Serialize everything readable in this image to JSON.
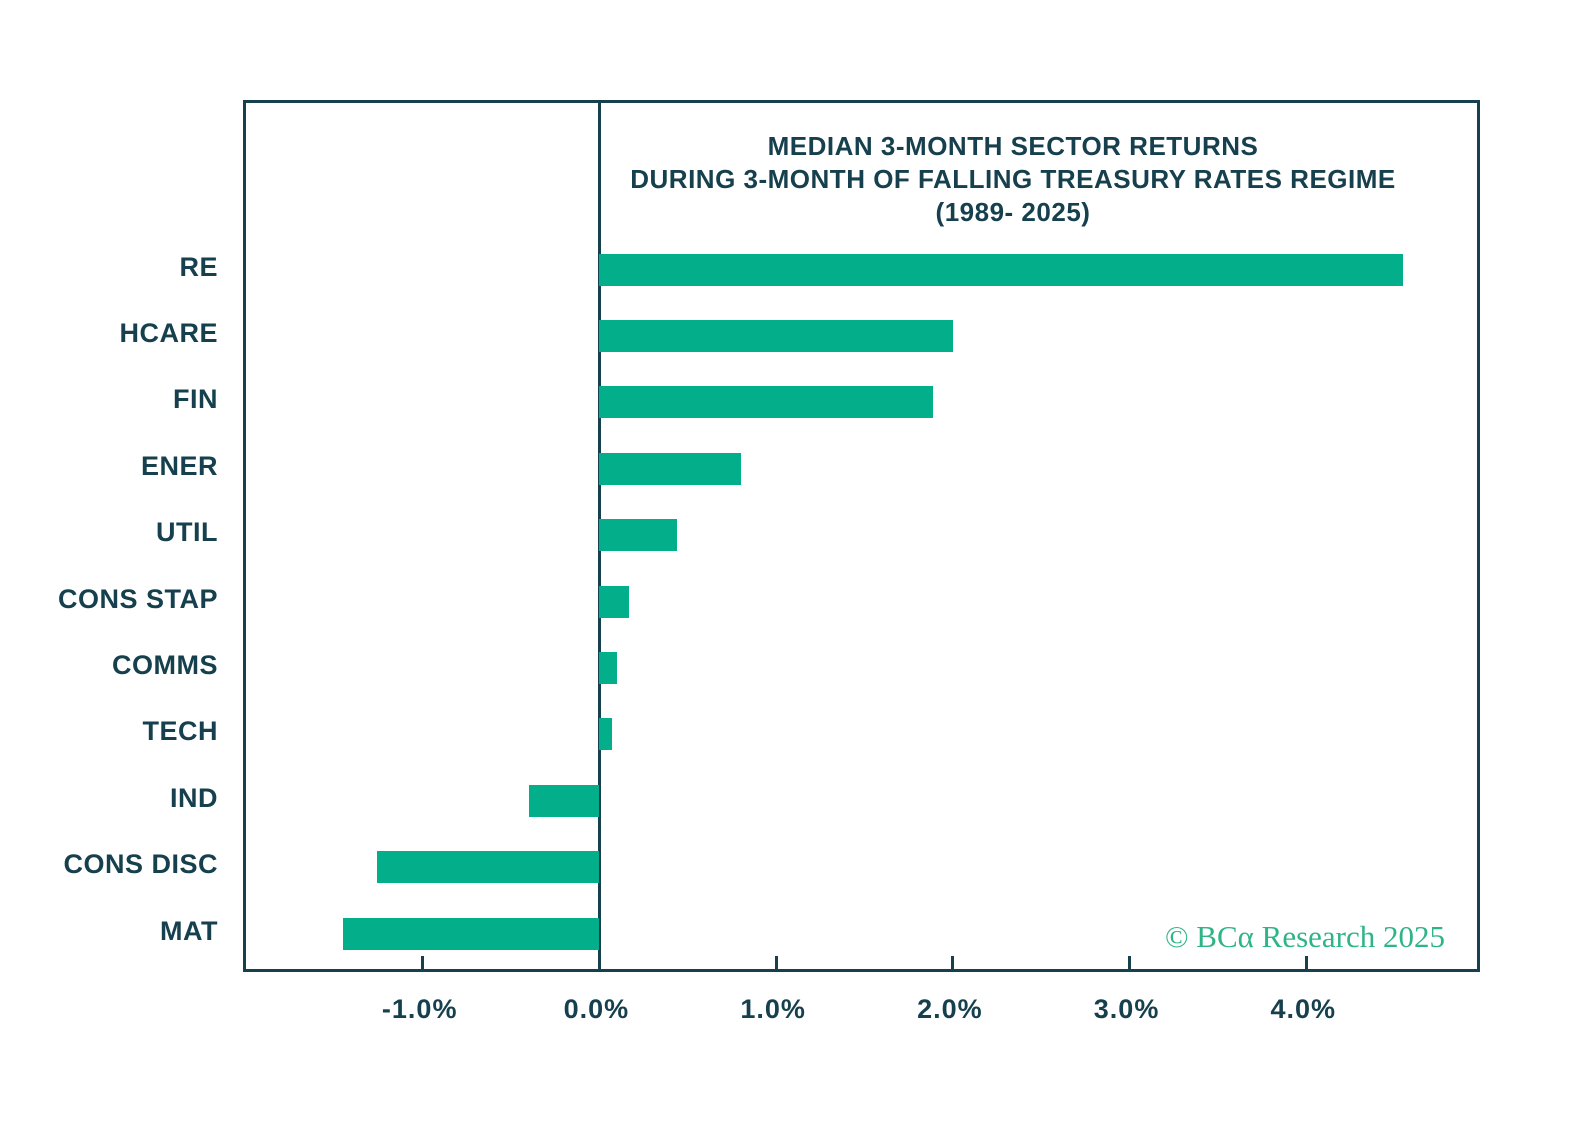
{
  "page": {
    "background": "#ffffff"
  },
  "chart_data": {
    "type": "bar",
    "orientation": "horizontal",
    "title_lines": [
      "MEDIAN 3-MONTH SECTOR RETURNS",
      "DURING 3-MONTH OF FALLING TREASURY RATES REGIME",
      "(1989- 2025)"
    ],
    "categories": [
      "RE",
      "HCARE",
      "FIN",
      "ENER",
      "UTIL",
      "CONS STAP",
      "COMMS",
      "TECH",
      "IND",
      "CONS DISC",
      "MAT"
    ],
    "values": [
      4.55,
      2.0,
      1.89,
      0.8,
      0.44,
      0.17,
      0.1,
      0.07,
      -0.4,
      -1.26,
      -1.45
    ],
    "unit": "%",
    "xlim": [
      -2,
      5
    ],
    "x_ticks": [
      {
        "value": -1,
        "label": "-1.0%"
      },
      {
        "value": 0,
        "label": "0.0%"
      },
      {
        "value": 1,
        "label": "1.0%"
      },
      {
        "value": 2,
        "label": "2.0%"
      },
      {
        "value": 3,
        "label": "3.0%"
      },
      {
        "value": 4,
        "label": "4.0%"
      }
    ],
    "grid": false,
    "legend": "none",
    "colors": {
      "bar": "#03ae8b",
      "axis": "#16404d",
      "text": "#16404d",
      "credit": "#2db587"
    },
    "credit": {
      "text": "© BCα Research 2025"
    }
  }
}
